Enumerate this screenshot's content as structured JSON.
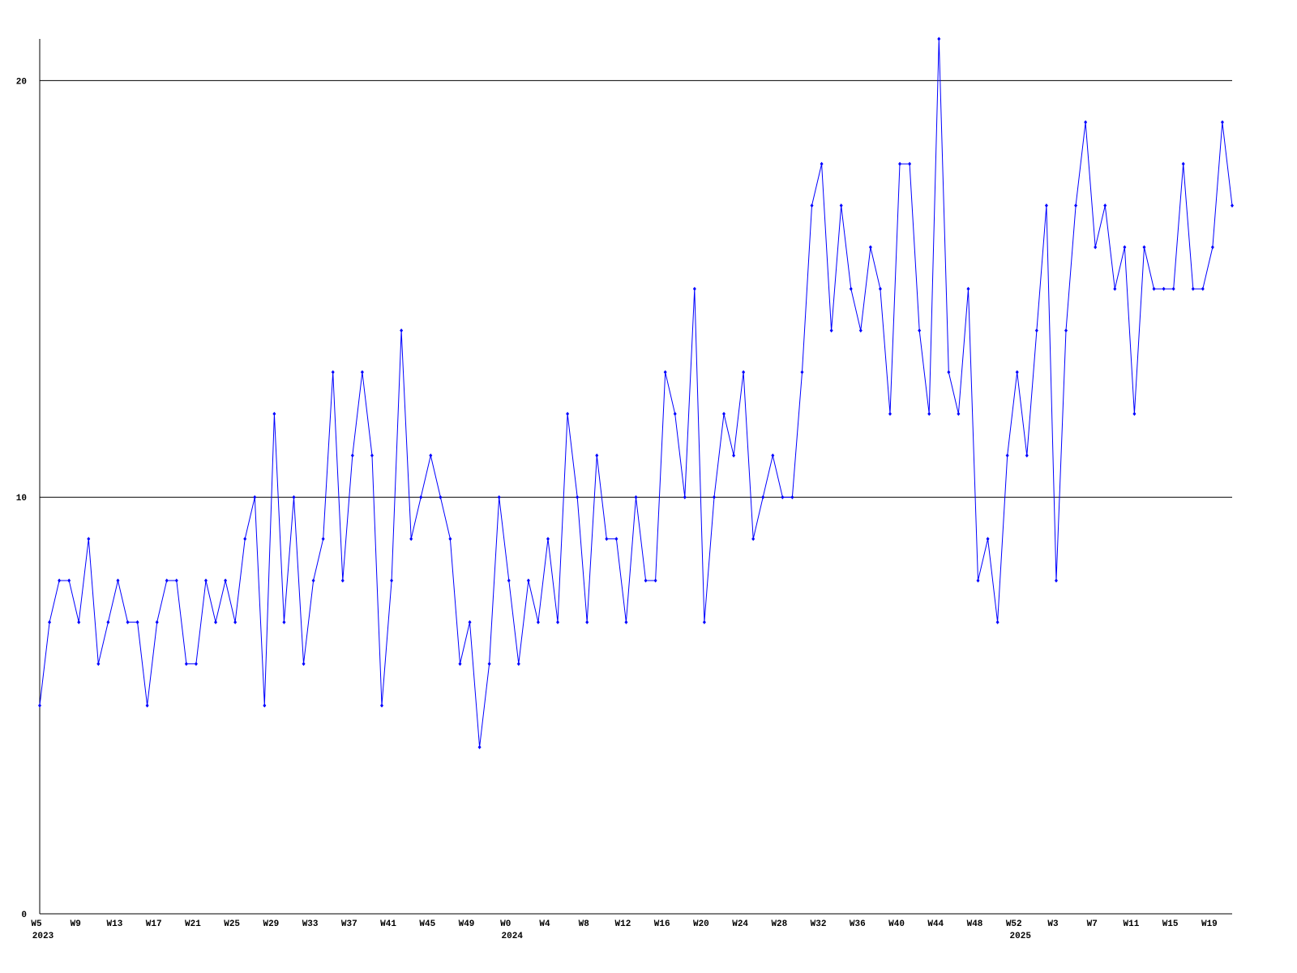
{
  "chart_data": {
    "type": "line",
    "categories": [
      "W5",
      null,
      null,
      null,
      "W9",
      null,
      null,
      null,
      "W13",
      null,
      null,
      null,
      "W17",
      null,
      null,
      null,
      "W21",
      null,
      null,
      null,
      "W25",
      null,
      null,
      null,
      "W29",
      null,
      null,
      null,
      "W33",
      null,
      null,
      null,
      "W37",
      null,
      null,
      null,
      "W41",
      null,
      null,
      null,
      "W45",
      null,
      null,
      null,
      "W49",
      null,
      null,
      null,
      "W0",
      null,
      null,
      null,
      "W4",
      null,
      null,
      null,
      "W8",
      null,
      null,
      null,
      "W12",
      null,
      null,
      null,
      "W16",
      null,
      null,
      null,
      "W20",
      null,
      null,
      null,
      "W24",
      null,
      null,
      null,
      "W28",
      null,
      null,
      null,
      "W32",
      null,
      null,
      null,
      "W36",
      null,
      null,
      null,
      "W40",
      null,
      null,
      null,
      "W44",
      null,
      null,
      null,
      "W48",
      null,
      null,
      null,
      "W52",
      null,
      null,
      null,
      "W3",
      null,
      null,
      null,
      "W7",
      null,
      null,
      null,
      "W11",
      null,
      null,
      null,
      "W15",
      null,
      null,
      null,
      "W19",
      null,
      null
    ],
    "category_years": [
      "2023",
      null,
      null,
      null,
      null,
      null,
      null,
      null,
      null,
      null,
      null,
      null,
      null,
      null,
      null,
      null,
      null,
      null,
      null,
      null,
      null,
      null,
      null,
      null,
      null,
      null,
      null,
      null,
      null,
      null,
      null,
      null,
      null,
      null,
      null,
      null,
      null,
      null,
      null,
      null,
      null,
      null,
      null,
      null,
      null,
      null,
      null,
      null,
      "2024",
      null,
      null,
      null,
      null,
      null,
      null,
      null,
      null,
      null,
      null,
      null,
      null,
      null,
      null,
      null,
      null,
      null,
      null,
      null,
      null,
      null,
      null,
      null,
      null,
      null,
      null,
      null,
      null,
      null,
      null,
      null,
      null,
      null,
      null,
      null,
      null,
      null,
      null,
      null,
      null,
      null,
      null,
      null,
      null,
      null,
      null,
      null,
      null,
      null,
      null,
      null,
      "2025",
      null,
      null,
      null,
      null,
      null,
      null,
      null,
      null,
      null,
      null,
      null,
      null,
      null,
      null,
      null,
      null,
      null,
      null,
      null,
      null,
      null,
      null
    ],
    "series": [
      {
        "color": "#0000ff",
        "values": [
          5,
          7,
          8,
          8,
          7,
          9,
          6,
          7,
          8,
          7,
          7,
          5,
          7,
          8,
          8,
          6,
          6,
          8,
          7,
          8,
          7,
          9,
          10,
          5,
          12,
          7,
          10,
          6,
          8,
          9,
          13,
          8,
          11,
          13,
          11,
          5,
          8,
          14,
          9,
          10,
          11,
          10,
          9,
          6,
          7,
          4,
          6,
          10,
          8,
          6,
          8,
          7,
          9,
          7,
          12,
          10,
          7,
          11,
          9,
          9,
          7,
          10,
          8,
          8,
          13,
          12,
          10,
          15,
          7,
          10,
          12,
          11,
          13,
          9,
          10,
          11,
          10,
          10,
          13,
          17,
          18,
          14,
          17,
          15,
          14,
          16,
          15,
          12,
          18,
          18,
          14,
          12,
          21,
          13,
          12,
          15,
          8,
          9,
          7,
          11,
          13,
          11,
          14,
          17,
          8,
          14,
          17,
          19,
          16,
          17,
          15,
          16,
          12,
          16,
          15,
          15,
          15,
          18,
          15,
          15,
          16,
          19,
          17
        ]
      }
    ],
    "ylim": [
      0,
      21
    ],
    "yticks": [
      0,
      10,
      20
    ],
    "grid": true
  }
}
